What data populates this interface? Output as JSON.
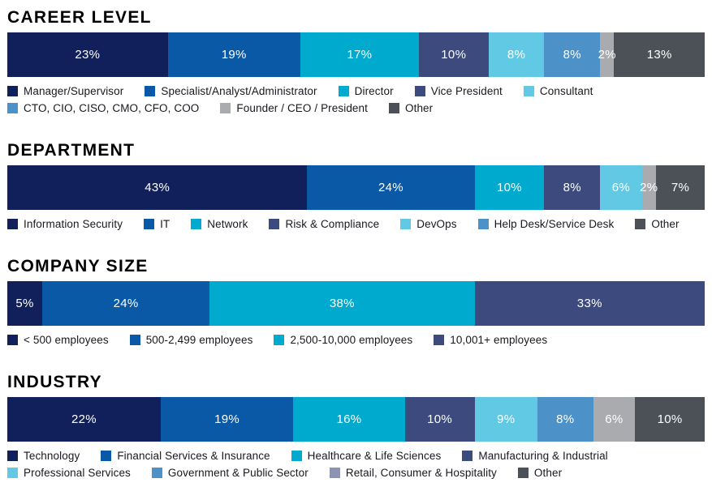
{
  "page": {
    "background": "#ffffff",
    "title_color": "#000000",
    "legend_text_color": "#18181f"
  },
  "palette": {
    "navy": "#111f5b",
    "blue": "#0a59a6",
    "cyan": "#00a9ce",
    "slate": "#3c4a7d",
    "light_cyan": "#62c9e4",
    "steel_blue": "#4c91c8",
    "gray": "#a9abae",
    "dark_gray": "#4b5156",
    "lavender_gray": "#8d93b2"
  },
  "chart_data": [
    {
      "id": "career-level",
      "type": "bar",
      "orientation": "horizontal-stacked",
      "title": "CAREER LEVEL",
      "unit": "%",
      "xlim": [
        0,
        100
      ],
      "segments": [
        {
          "label": "Manager/Supervisor",
          "value": 23,
          "display": "23%",
          "color": "#111f5b"
        },
        {
          "label": "Specialist/Analyst/Administrator",
          "value": 19,
          "display": "19%",
          "color": "#0a59a6"
        },
        {
          "label": "Director",
          "value": 17,
          "display": "17%",
          "color": "#00a9ce"
        },
        {
          "label": "Vice President",
          "value": 10,
          "display": "10%",
          "color": "#3c4a7d"
        },
        {
          "label": "Consultant",
          "value": 8,
          "display": "8%",
          "color": "#62c9e4"
        },
        {
          "label": "CTO, CIO, CISO, CMO, CFO, COO",
          "value": 8,
          "display": "8%",
          "color": "#4c91c8"
        },
        {
          "label": "Founder / CEO / President",
          "value": 2,
          "display": "2%",
          "color": "#a9abae"
        },
        {
          "label": "Other",
          "value": 13,
          "display": "13%",
          "color": "#4b5156"
        }
      ],
      "legend_rows": [
        [
          {
            "label": "Manager/Supervisor",
            "color": "#111f5b"
          },
          {
            "label": "Specialist/Analyst/Administrator",
            "color": "#0a59a6"
          },
          {
            "label": "Director",
            "color": "#00a9ce"
          },
          {
            "label": "Vice President",
            "color": "#3c4a7d"
          },
          {
            "label": "Consultant",
            "color": "#62c9e4"
          }
        ],
        [
          {
            "label": "CTO, CIO, CISO, CMO, CFO, COO",
            "color": "#4c91c8"
          },
          {
            "label": "Founder / CEO / President",
            "color": "#a9abae"
          },
          {
            "label": "Other",
            "color": "#4b5156"
          }
        ]
      ]
    },
    {
      "id": "department",
      "type": "bar",
      "orientation": "horizontal-stacked",
      "title": "DEPARTMENT",
      "unit": "%",
      "xlim": [
        0,
        100
      ],
      "segments": [
        {
          "label": "Information Security",
          "value": 43,
          "display": "43%",
          "color": "#111f5b"
        },
        {
          "label": "IT",
          "value": 24,
          "display": "24%",
          "color": "#0a59a6"
        },
        {
          "label": "Network",
          "value": 10,
          "display": "10%",
          "color": "#00a9ce"
        },
        {
          "label": "Risk & Compliance",
          "value": 8,
          "display": "8%",
          "color": "#3c4a7d"
        },
        {
          "label": "DevOps",
          "value": 6,
          "display": "6%",
          "color": "#62c9e4"
        },
        {
          "label": "Help Desk/Service Desk",
          "value": 2,
          "display": "2%",
          "color": "#a9abae"
        },
        {
          "label": "Other",
          "value": 7,
          "display": "7%",
          "color": "#4b5156"
        }
      ],
      "legend_rows": [
        [
          {
            "label": "Information Security",
            "color": "#111f5b"
          },
          {
            "label": "IT",
            "color": "#0a59a6"
          },
          {
            "label": "Network",
            "color": "#00a9ce"
          },
          {
            "label": "Risk & Compliance",
            "color": "#3c4a7d"
          },
          {
            "label": "DevOps",
            "color": "#62c9e4"
          },
          {
            "label": "Help Desk/Service Desk",
            "color": "#4c91c8"
          },
          {
            "label": "Other",
            "color": "#4b5156"
          }
        ]
      ]
    },
    {
      "id": "company-size",
      "type": "bar",
      "orientation": "horizontal-stacked",
      "title": "COMPANY SIZE",
      "unit": "%",
      "xlim": [
        0,
        100
      ],
      "segments": [
        {
          "label": "< 500 employees",
          "value": 5,
          "display": "5%",
          "color": "#111f5b"
        },
        {
          "label": "500-2,499 employees",
          "value": 24,
          "display": "24%",
          "color": "#0a59a6"
        },
        {
          "label": "2,500-10,000 employees",
          "value": 38,
          "display": "38%",
          "color": "#00a9ce"
        },
        {
          "label": "10,001+ employees",
          "value": 33,
          "display": "33%",
          "color": "#3c4a7d"
        }
      ],
      "legend_rows": [
        [
          {
            "label": "< 500 employees",
            "color": "#111f5b"
          },
          {
            "label": "500-2,499 employees",
            "color": "#0a59a6"
          },
          {
            "label": "2,500-10,000 employees",
            "color": "#00a9ce"
          },
          {
            "label": "10,001+ employees",
            "color": "#3c4a7d"
          }
        ]
      ]
    },
    {
      "id": "industry",
      "type": "bar",
      "orientation": "horizontal-stacked",
      "title": "INDUSTRY",
      "unit": "%",
      "xlim": [
        0,
        100
      ],
      "segments": [
        {
          "label": "Technology",
          "value": 22,
          "display": "22%",
          "color": "#111f5b"
        },
        {
          "label": "Financial Services & Insurance",
          "value": 19,
          "display": "19%",
          "color": "#0a59a6"
        },
        {
          "label": "Healthcare & Life Sciences",
          "value": 16,
          "display": "16%",
          "color": "#00a9ce"
        },
        {
          "label": "Manufacturing & Industrial",
          "value": 10,
          "display": "10%",
          "color": "#3c4a7d"
        },
        {
          "label": "Professional Services",
          "value": 9,
          "display": "9%",
          "color": "#62c9e4"
        },
        {
          "label": "Government & Public Sector",
          "value": 8,
          "display": "8%",
          "color": "#4c91c8"
        },
        {
          "label": "Retail, Consumer & Hospitality",
          "value": 6,
          "display": "6%",
          "color": "#a9abae"
        },
        {
          "label": "Other",
          "value": 10,
          "display": "10%",
          "color": "#4b5156"
        }
      ],
      "legend_rows": [
        [
          {
            "label": "Technology",
            "color": "#111f5b"
          },
          {
            "label": "Financial Services & Insurance",
            "color": "#0a59a6"
          },
          {
            "label": "Healthcare & Life Sciences",
            "color": "#00a9ce"
          },
          {
            "label": "Manufacturing & Industrial",
            "color": "#3c4a7d"
          }
        ],
        [
          {
            "label": "Professional Services",
            "color": "#62c9e4"
          },
          {
            "label": "Government & Public Sector",
            "color": "#4c91c8"
          },
          {
            "label": "Retail, Consumer & Hospitality",
            "color": "#8d93b2"
          },
          {
            "label": "Other",
            "color": "#4b5156"
          }
        ]
      ]
    }
  ]
}
